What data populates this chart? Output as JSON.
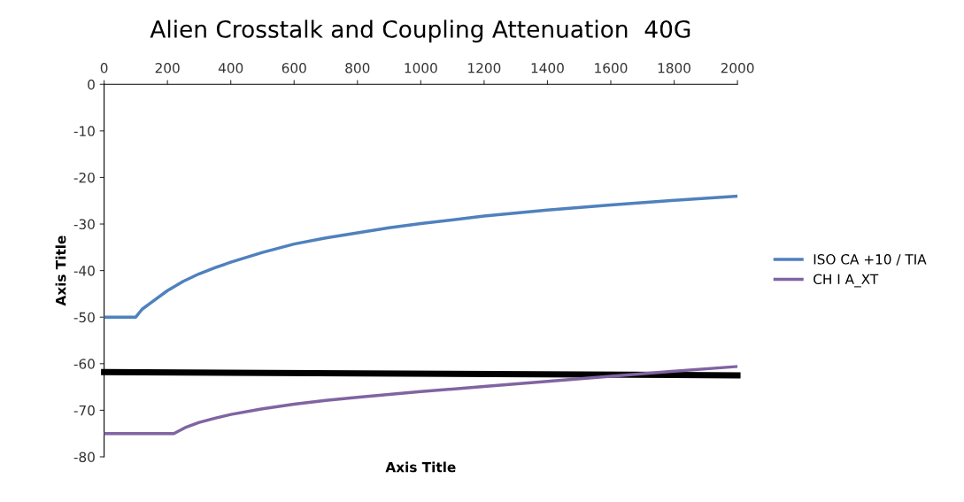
{
  "chart_data": {
    "type": "line",
    "title": "Alien Crosstalk and Coupling Attenuation  40G",
    "xlabel": "Axis Title",
    "ylabel": "Axis Title",
    "xlim": [
      0,
      2000
    ],
    "xticks": [
      0,
      200,
      400,
      600,
      800,
      1000,
      1200,
      1400,
      1600,
      1800,
      2000
    ],
    "ylim": [
      -80,
      0
    ],
    "yticks": [
      -80,
      -70,
      -60,
      -50,
      -40,
      -30,
      -20,
      -10,
      0
    ],
    "grid": false,
    "legend": "right",
    "marker": "none",
    "line_style": "solid",
    "series": [
      {
        "name": "ISO CA +10 / TIA",
        "color": "#4f81bd",
        "x": [
          0,
          100,
          120,
          150,
          200,
          250,
          300,
          350,
          400,
          500,
          600,
          700,
          800,
          900,
          1000,
          1200,
          1400,
          1600,
          1800,
          2000
        ],
        "values": [
          -50,
          -50,
          -48.3,
          -46.8,
          -44.3,
          -42.3,
          -40.7,
          -39.4,
          -38.2,
          -36.1,
          -34.3,
          -33,
          -31.9,
          -30.8,
          -29.9,
          -28.3,
          -27,
          -25.9,
          -24.9,
          -24
        ]
      },
      {
        "name": "CH I A_XT",
        "color": "#8064a2",
        "x": [
          0,
          220,
          260,
          300,
          350,
          400,
          500,
          600,
          700,
          800,
          900,
          1000,
          1200,
          1400,
          1600,
          1800,
          2000
        ],
        "values": [
          -75,
          -75,
          -73.6,
          -72.6,
          -71.7,
          -70.9,
          -69.7,
          -68.7,
          -67.9,
          -67.2,
          -66.6,
          -66,
          -64.9,
          -63.8,
          -62.7,
          -61.6,
          -60.6
        ]
      },
      {
        "color": "#000000",
        "x": [
          0,
          2000
        ],
        "values": [
          -61.8,
          -62.5
        ]
      }
    ]
  }
}
